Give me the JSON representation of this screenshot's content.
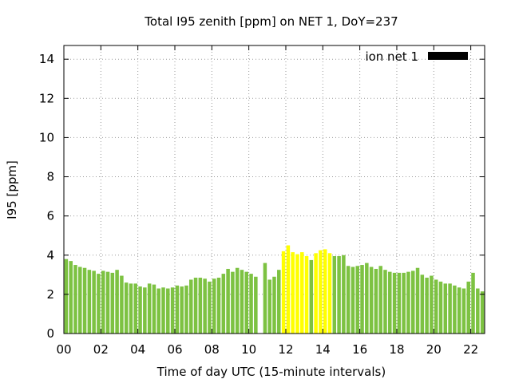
{
  "chart_data": {
    "type": "bar",
    "title": "Total I95 zenith [ppm] on NET 1, DoY=237",
    "xlabel": "Time of day UTC (15-minute intervals)",
    "ylabel": "I95 [ppm]",
    "xlim": [
      0,
      22.75
    ],
    "ylim": [
      0,
      14.7
    ],
    "xticks": [
      0,
      2,
      4,
      6,
      8,
      10,
      12,
      14,
      16,
      18,
      20,
      22
    ],
    "xtick_labels": [
      "00",
      "02",
      "04",
      "06",
      "08",
      "10",
      "12",
      "14",
      "16",
      "18",
      "20",
      "22"
    ],
    "yticks": [
      0,
      2,
      4,
      6,
      8,
      10,
      12,
      14
    ],
    "ytick_labels": [
      "0",
      "2",
      "4",
      "6",
      "8",
      "10",
      "12",
      "14"
    ],
    "grid": true,
    "legend": {
      "position": "top-right",
      "entries": [
        {
          "label": "ion net 1",
          "color": "#000000"
        }
      ]
    },
    "bar_interval_hours": 0.25,
    "colors": {
      "normal": "#7dc242",
      "highlight": "#ffff00"
    },
    "x": [
      0.0,
      0.25,
      0.5,
      0.75,
      1.0,
      1.25,
      1.5,
      1.75,
      2.0,
      2.25,
      2.5,
      2.75,
      3.0,
      3.25,
      3.5,
      3.75,
      4.0,
      4.25,
      4.5,
      4.75,
      5.0,
      5.25,
      5.5,
      5.75,
      6.0,
      6.25,
      6.5,
      6.75,
      7.0,
      7.25,
      7.5,
      7.75,
      8.0,
      8.25,
      8.5,
      8.75,
      9.0,
      9.25,
      9.5,
      9.75,
      10.0,
      10.25,
      10.75,
      11.0,
      11.25,
      11.5,
      11.75,
      12.0,
      12.25,
      12.5,
      12.75,
      13.0,
      13.25,
      13.5,
      13.75,
      14.0,
      14.25,
      14.5,
      14.75,
      15.0,
      15.25,
      15.5,
      15.75,
      16.0,
      16.25,
      16.5,
      16.75,
      17.0,
      17.25,
      17.5,
      17.75,
      18.0,
      18.25,
      18.5,
      18.75,
      19.0,
      19.25,
      19.5,
      19.75,
      20.0,
      20.25,
      20.5,
      20.75,
      21.0,
      21.25,
      21.5,
      21.75,
      22.0,
      22.25,
      22.5
    ],
    "values": [
      3.8,
      3.7,
      3.5,
      3.4,
      3.35,
      3.25,
      3.2,
      3.05,
      3.2,
      3.15,
      3.1,
      3.25,
      2.95,
      2.6,
      2.55,
      2.55,
      2.4,
      2.35,
      2.55,
      2.5,
      2.3,
      2.35,
      2.3,
      2.35,
      2.45,
      2.4,
      2.45,
      2.75,
      2.85,
      2.85,
      2.8,
      2.65,
      2.8,
      2.85,
      3.05,
      3.3,
      3.15,
      3.35,
      3.25,
      3.15,
      3.05,
      2.9,
      3.6,
      2.75,
      2.9,
      3.25,
      4.2,
      4.5,
      4.15,
      4.05,
      4.15,
      3.95,
      3.75,
      4.1,
      4.25,
      4.3,
      4.1,
      3.95,
      3.95,
      4.0,
      3.45,
      3.4,
      3.45,
      3.5,
      3.6,
      3.4,
      3.3,
      3.45,
      3.25,
      3.15,
      3.1,
      3.1,
      3.1,
      3.15,
      3.2,
      3.35,
      3.0,
      2.85,
      2.95,
      2.75,
      2.65,
      2.55,
      2.55,
      2.45,
      2.35,
      2.3,
      2.65,
      3.1,
      2.3,
      2.15
    ],
    "highlighted": [
      false,
      false,
      false,
      false,
      false,
      false,
      false,
      false,
      false,
      false,
      false,
      false,
      false,
      false,
      false,
      false,
      false,
      false,
      false,
      false,
      false,
      false,
      false,
      false,
      false,
      false,
      false,
      false,
      false,
      false,
      false,
      false,
      false,
      false,
      false,
      false,
      false,
      false,
      false,
      false,
      false,
      false,
      false,
      false,
      false,
      false,
      true,
      true,
      true,
      true,
      true,
      true,
      false,
      true,
      true,
      true,
      true,
      false,
      false,
      false,
      false,
      false,
      false,
      false,
      false,
      false,
      false,
      false,
      false,
      false,
      false,
      false,
      false,
      false,
      false,
      false,
      false,
      false,
      false,
      false,
      false,
      false,
      false,
      false,
      false,
      false,
      false,
      false,
      false,
      false
    ]
  }
}
